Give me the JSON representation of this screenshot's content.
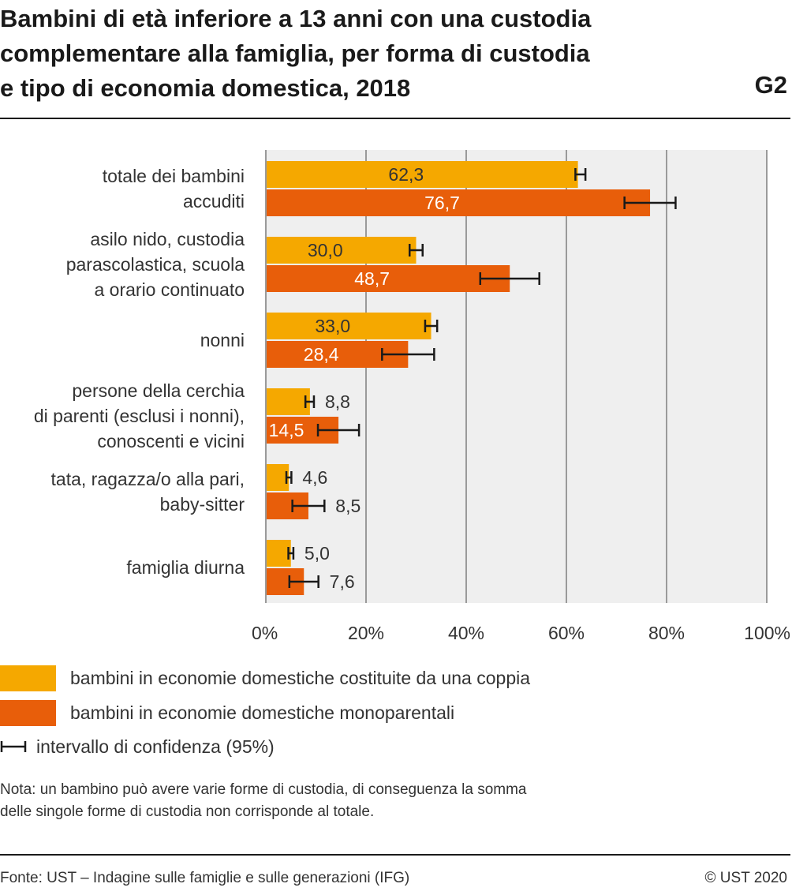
{
  "header": {
    "title": "Bambini di età inferiore a 13 anni con una custodia\ncomplementare alla famiglia, per forma di custodia\ne tipo di economia domestica, 2018",
    "chart_id": "G2"
  },
  "colors": {
    "series1": "#f5a800",
    "series2": "#e85e0a",
    "plot_bg": "#efefef",
    "grid": "#9a9a9a",
    "error_bar": "#1a1a1a"
  },
  "chart_data": {
    "type": "bar",
    "orientation": "horizontal",
    "categories": [
      [
        "totale dei bambini",
        "accuditi"
      ],
      [
        "asilo nido, custodia",
        "parascolastica, scuola",
        "a orario continuato"
      ],
      [
        "nonni"
      ],
      [
        "persone della cerchia",
        "di parenti (esclusi i nonni),",
        "conoscenti e vicini"
      ],
      [
        "tata, ragazza/o alla pari,",
        "baby-sitter"
      ],
      [
        "famiglia diurna"
      ]
    ],
    "series": [
      {
        "name": "bambini in economie domestiche costituite da una coppia",
        "values": [
          62.3,
          30.0,
          33.0,
          8.8,
          4.6,
          5.0
        ],
        "labels": [
          "62,3",
          "30,0",
          "33,0",
          "8,8",
          "4,6",
          "5,0"
        ],
        "ci_low": [
          61.8,
          28.7,
          31.8,
          7.9,
          4.1,
          4.5
        ],
        "ci_high": [
          63.8,
          31.3,
          34.2,
          9.6,
          5.1,
          5.5
        ]
      },
      {
        "name": "bambini in economie domestiche monoparentali",
        "values": [
          76.7,
          48.7,
          28.4,
          14.5,
          8.5,
          7.6
        ],
        "labels": [
          "76,7",
          "48,7",
          "28,4",
          "14,5",
          "8,5",
          "7,6"
        ],
        "ci_low": [
          71.6,
          42.8,
          23.2,
          10.4,
          5.3,
          4.7
        ],
        "ci_high": [
          81.8,
          54.6,
          33.6,
          18.6,
          11.7,
          10.5
        ]
      }
    ],
    "x_ticks": [
      "0%",
      "20%",
      "40%",
      "60%",
      "80%",
      "100%"
    ],
    "xlim": [
      0,
      100
    ],
    "grid": true,
    "legend_position": "bottom",
    "error_bar_legend": "intervallo di confidenza (95%)"
  },
  "note": "Nota: un bambino può avere varie forme di custodia, di conseguenza la somma\ndelle singole forme di custodia non corrisponde al totale.",
  "footer": {
    "source": "Fonte: UST – Indagine sulle famiglie e sulle generazioni (IFG)",
    "copyright": "© UST 2020"
  }
}
